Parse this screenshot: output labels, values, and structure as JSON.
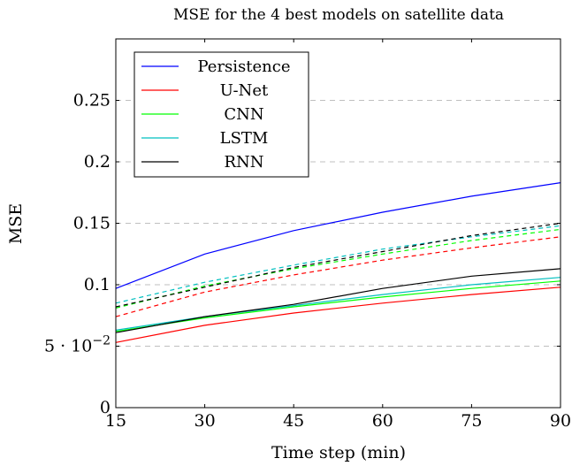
{
  "chart_data": {
    "type": "line",
    "title": "MSE for the 4 best models on satellite data",
    "xlabel": "Time step (min)",
    "ylabel": "MSE",
    "x": [
      15,
      30,
      45,
      60,
      75,
      90
    ],
    "xlim": [
      15,
      90
    ],
    "ylim": [
      0,
      0.3
    ],
    "xticks": [
      {
        "value": 15,
        "label": "15"
      },
      {
        "value": 30,
        "label": "30"
      },
      {
        "value": 45,
        "label": "45"
      },
      {
        "value": 60,
        "label": "60"
      },
      {
        "value": 75,
        "label": "75"
      },
      {
        "value": 90,
        "label": "90"
      }
    ],
    "yticks": [
      {
        "value": 0,
        "label": "0"
      },
      {
        "value": 0.05,
        "label": "5 · 10",
        "exp": "−2"
      },
      {
        "value": 0.1,
        "label": "0.1"
      },
      {
        "value": 0.15,
        "label": "0.15"
      },
      {
        "value": 0.2,
        "label": "0.2"
      },
      {
        "value": 0.25,
        "label": "0.25"
      }
    ],
    "grid": "horizontal-dashed",
    "legend_position": "top-left",
    "series": [
      {
        "name": "Persistence",
        "color": "#0000ff",
        "style": "solid",
        "values": [
          0.097,
          0.125,
          0.144,
          0.159,
          0.172,
          0.183
        ]
      },
      {
        "name": "U-Net",
        "color": "#ff0000",
        "style": "solid",
        "values": [
          0.053,
          0.067,
          0.077,
          0.085,
          0.092,
          0.098
        ]
      },
      {
        "name": "CNN",
        "color": "#00ff00",
        "style": "solid",
        "values": [
          0.062,
          0.073,
          0.082,
          0.09,
          0.097,
          0.103
        ]
      },
      {
        "name": "LSTM",
        "color": "#00bfbf",
        "style": "solid",
        "values": [
          0.063,
          0.074,
          0.083,
          0.092,
          0.1,
          0.106
        ]
      },
      {
        "name": "RNN",
        "color": "#000000",
        "style": "solid",
        "values": [
          0.061,
          0.074,
          0.084,
          0.097,
          0.107,
          0.113
        ]
      },
      {
        "color": "#ff0000",
        "style": "dashed",
        "values": [
          0.074,
          0.094,
          0.108,
          0.12,
          0.13,
          0.139
        ]
      },
      {
        "color": "#00ff00",
        "style": "dashed",
        "values": [
          0.081,
          0.099,
          0.113,
          0.125,
          0.136,
          0.145
        ]
      },
      {
        "color": "#00bfbf",
        "style": "dashed",
        "values": [
          0.085,
          0.102,
          0.116,
          0.129,
          0.139,
          0.148
        ]
      },
      {
        "color": "#000000",
        "style": "dashed",
        "values": [
          0.082,
          0.098,
          0.114,
          0.127,
          0.14,
          0.15
        ]
      }
    ]
  }
}
